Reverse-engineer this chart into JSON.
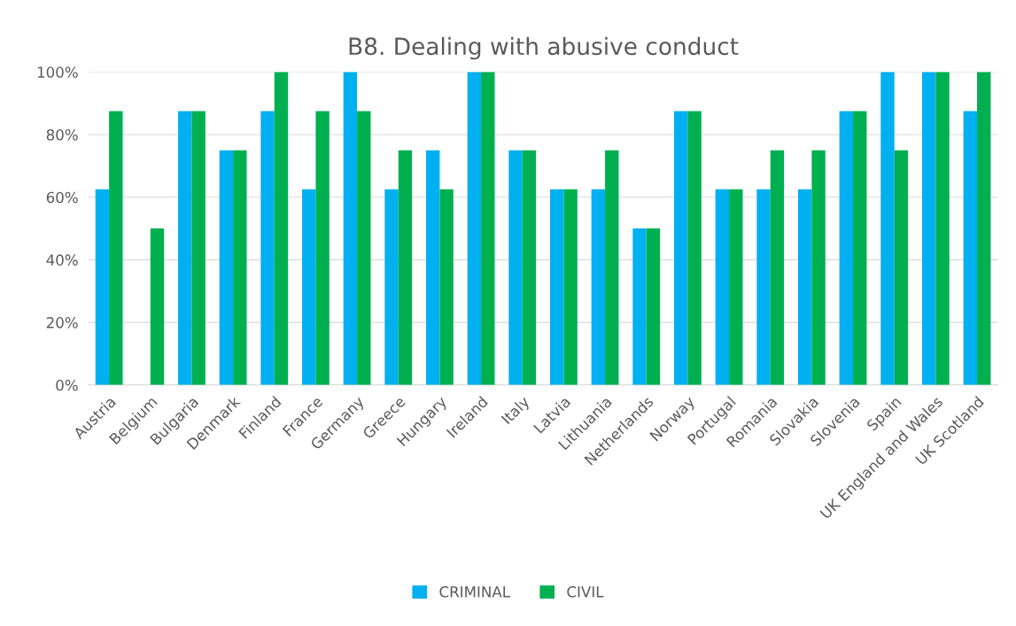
{
  "chart_data": {
    "type": "bar",
    "title": "B8. Dealing with abusive conduct",
    "categories": [
      "Austria",
      "Belgium",
      "Bulgaria",
      "Denmark",
      "Finland",
      "France",
      "Germany",
      "Greece",
      "Hungary",
      "Ireland",
      "Italy",
      "Latvia",
      "Lithuania",
      "Netherlands",
      "Norway",
      "Portugal",
      "Romania",
      "Slovakia",
      "Slovenia",
      "Spain",
      "UK England and Wales",
      "UK Scotland"
    ],
    "series": [
      {
        "name": "CRIMINAL",
        "color": "#00b0f0",
        "values": [
          62.5,
          0,
          87.5,
          75,
          87.5,
          62.5,
          100,
          62.5,
          75,
          100,
          75,
          62.5,
          62.5,
          50,
          87.5,
          62.5,
          62.5,
          62.5,
          87.5,
          100,
          100,
          87.5
        ]
      },
      {
        "name": "CIVIL",
        "color": "#00b050",
        "values": [
          87.5,
          50,
          87.5,
          75,
          100,
          87.5,
          87.5,
          75,
          62.5,
          100,
          75,
          62.5,
          75,
          50,
          87.5,
          62.5,
          75,
          75,
          87.5,
          75,
          100,
          100
        ]
      }
    ],
    "ylim": [
      0,
      100
    ],
    "yticks": [
      {
        "value": 0,
        "label": "0%"
      },
      {
        "value": 20,
        "label": "20%"
      },
      {
        "value": 40,
        "label": "40%"
      },
      {
        "value": 60,
        "label": "60%"
      },
      {
        "value": 80,
        "label": "80%"
      },
      {
        "value": 100,
        "label": "100%"
      }
    ],
    "grid": "y",
    "legend": "bottom"
  }
}
